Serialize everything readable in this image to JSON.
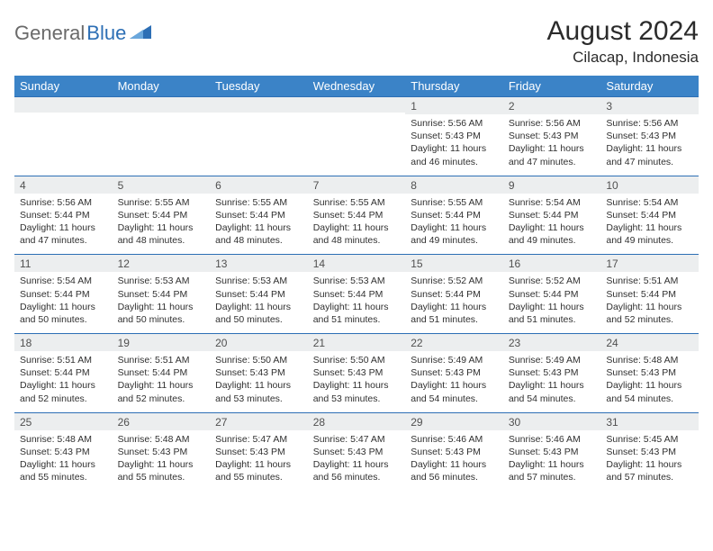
{
  "brand": {
    "part1": "General",
    "part2": "Blue"
  },
  "title": "August 2024",
  "location": "Cilacap, Indonesia",
  "colors": {
    "header_bg": "#3b83c7",
    "header_text": "#ffffff",
    "daynum_bg": "#eceeef",
    "daynum_border": "#2d6fb5",
    "body_text": "#303030",
    "brand_gray": "#6a6a6a",
    "brand_blue": "#2d6fb5"
  },
  "day_names": [
    "Sunday",
    "Monday",
    "Tuesday",
    "Wednesday",
    "Thursday",
    "Friday",
    "Saturday"
  ],
  "weeks": [
    [
      {
        "n": "",
        "lines": []
      },
      {
        "n": "",
        "lines": []
      },
      {
        "n": "",
        "lines": []
      },
      {
        "n": "",
        "lines": []
      },
      {
        "n": "1",
        "lines": [
          "Sunrise: 5:56 AM",
          "Sunset: 5:43 PM",
          "Daylight: 11 hours",
          "and 46 minutes."
        ]
      },
      {
        "n": "2",
        "lines": [
          "Sunrise: 5:56 AM",
          "Sunset: 5:43 PM",
          "Daylight: 11 hours",
          "and 47 minutes."
        ]
      },
      {
        "n": "3",
        "lines": [
          "Sunrise: 5:56 AM",
          "Sunset: 5:43 PM",
          "Daylight: 11 hours",
          "and 47 minutes."
        ]
      }
    ],
    [
      {
        "n": "4",
        "lines": [
          "Sunrise: 5:56 AM",
          "Sunset: 5:44 PM",
          "Daylight: 11 hours",
          "and 47 minutes."
        ]
      },
      {
        "n": "5",
        "lines": [
          "Sunrise: 5:55 AM",
          "Sunset: 5:44 PM",
          "Daylight: 11 hours",
          "and 48 minutes."
        ]
      },
      {
        "n": "6",
        "lines": [
          "Sunrise: 5:55 AM",
          "Sunset: 5:44 PM",
          "Daylight: 11 hours",
          "and 48 minutes."
        ]
      },
      {
        "n": "7",
        "lines": [
          "Sunrise: 5:55 AM",
          "Sunset: 5:44 PM",
          "Daylight: 11 hours",
          "and 48 minutes."
        ]
      },
      {
        "n": "8",
        "lines": [
          "Sunrise: 5:55 AM",
          "Sunset: 5:44 PM",
          "Daylight: 11 hours",
          "and 49 minutes."
        ]
      },
      {
        "n": "9",
        "lines": [
          "Sunrise: 5:54 AM",
          "Sunset: 5:44 PM",
          "Daylight: 11 hours",
          "and 49 minutes."
        ]
      },
      {
        "n": "10",
        "lines": [
          "Sunrise: 5:54 AM",
          "Sunset: 5:44 PM",
          "Daylight: 11 hours",
          "and 49 minutes."
        ]
      }
    ],
    [
      {
        "n": "11",
        "lines": [
          "Sunrise: 5:54 AM",
          "Sunset: 5:44 PM",
          "Daylight: 11 hours",
          "and 50 minutes."
        ]
      },
      {
        "n": "12",
        "lines": [
          "Sunrise: 5:53 AM",
          "Sunset: 5:44 PM",
          "Daylight: 11 hours",
          "and 50 minutes."
        ]
      },
      {
        "n": "13",
        "lines": [
          "Sunrise: 5:53 AM",
          "Sunset: 5:44 PM",
          "Daylight: 11 hours",
          "and 50 minutes."
        ]
      },
      {
        "n": "14",
        "lines": [
          "Sunrise: 5:53 AM",
          "Sunset: 5:44 PM",
          "Daylight: 11 hours",
          "and 51 minutes."
        ]
      },
      {
        "n": "15",
        "lines": [
          "Sunrise: 5:52 AM",
          "Sunset: 5:44 PM",
          "Daylight: 11 hours",
          "and 51 minutes."
        ]
      },
      {
        "n": "16",
        "lines": [
          "Sunrise: 5:52 AM",
          "Sunset: 5:44 PM",
          "Daylight: 11 hours",
          "and 51 minutes."
        ]
      },
      {
        "n": "17",
        "lines": [
          "Sunrise: 5:51 AM",
          "Sunset: 5:44 PM",
          "Daylight: 11 hours",
          "and 52 minutes."
        ]
      }
    ],
    [
      {
        "n": "18",
        "lines": [
          "Sunrise: 5:51 AM",
          "Sunset: 5:44 PM",
          "Daylight: 11 hours",
          "and 52 minutes."
        ]
      },
      {
        "n": "19",
        "lines": [
          "Sunrise: 5:51 AM",
          "Sunset: 5:44 PM",
          "Daylight: 11 hours",
          "and 52 minutes."
        ]
      },
      {
        "n": "20",
        "lines": [
          "Sunrise: 5:50 AM",
          "Sunset: 5:43 PM",
          "Daylight: 11 hours",
          "and 53 minutes."
        ]
      },
      {
        "n": "21",
        "lines": [
          "Sunrise: 5:50 AM",
          "Sunset: 5:43 PM",
          "Daylight: 11 hours",
          "and 53 minutes."
        ]
      },
      {
        "n": "22",
        "lines": [
          "Sunrise: 5:49 AM",
          "Sunset: 5:43 PM",
          "Daylight: 11 hours",
          "and 54 minutes."
        ]
      },
      {
        "n": "23",
        "lines": [
          "Sunrise: 5:49 AM",
          "Sunset: 5:43 PM",
          "Daylight: 11 hours",
          "and 54 minutes."
        ]
      },
      {
        "n": "24",
        "lines": [
          "Sunrise: 5:48 AM",
          "Sunset: 5:43 PM",
          "Daylight: 11 hours",
          "and 54 minutes."
        ]
      }
    ],
    [
      {
        "n": "25",
        "lines": [
          "Sunrise: 5:48 AM",
          "Sunset: 5:43 PM",
          "Daylight: 11 hours",
          "and 55 minutes."
        ]
      },
      {
        "n": "26",
        "lines": [
          "Sunrise: 5:48 AM",
          "Sunset: 5:43 PM",
          "Daylight: 11 hours",
          "and 55 minutes."
        ]
      },
      {
        "n": "27",
        "lines": [
          "Sunrise: 5:47 AM",
          "Sunset: 5:43 PM",
          "Daylight: 11 hours",
          "and 55 minutes."
        ]
      },
      {
        "n": "28",
        "lines": [
          "Sunrise: 5:47 AM",
          "Sunset: 5:43 PM",
          "Daylight: 11 hours",
          "and 56 minutes."
        ]
      },
      {
        "n": "29",
        "lines": [
          "Sunrise: 5:46 AM",
          "Sunset: 5:43 PM",
          "Daylight: 11 hours",
          "and 56 minutes."
        ]
      },
      {
        "n": "30",
        "lines": [
          "Sunrise: 5:46 AM",
          "Sunset: 5:43 PM",
          "Daylight: 11 hours",
          "and 57 minutes."
        ]
      },
      {
        "n": "31",
        "lines": [
          "Sunrise: 5:45 AM",
          "Sunset: 5:43 PM",
          "Daylight: 11 hours",
          "and 57 minutes."
        ]
      }
    ]
  ]
}
